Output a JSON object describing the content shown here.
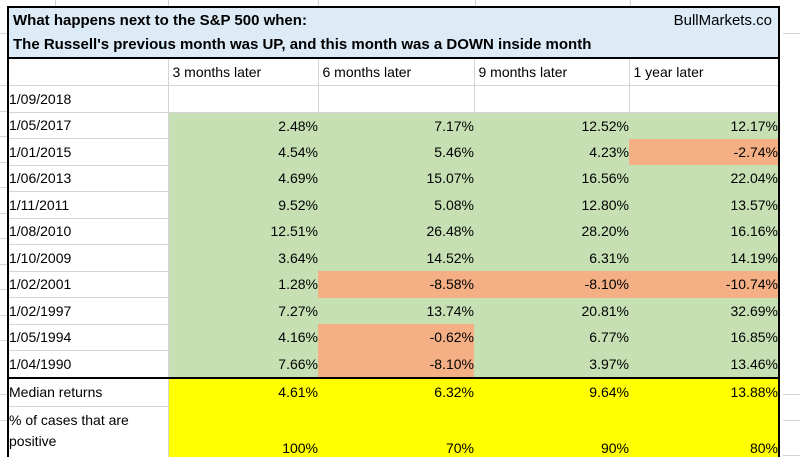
{
  "header": {
    "title_line1": "What happens next to the S&P 500 when:",
    "title_line2": "The Russell's previous month was UP, and this month was a DOWN inside month",
    "branding": "BullMarkets.co"
  },
  "columns": [
    "3 months later",
    "6 months later",
    "9 months later",
    "1 year later"
  ],
  "rows": [
    {
      "date": "1/09/2018",
      "values": [
        "",
        "",
        "",
        ""
      ]
    },
    {
      "date": "1/05/2017",
      "values": [
        "2.48%",
        "7.17%",
        "12.52%",
        "12.17%"
      ]
    },
    {
      "date": "1/01/2015",
      "values": [
        "4.54%",
        "5.46%",
        "4.23%",
        "-2.74%"
      ]
    },
    {
      "date": "1/06/2013",
      "values": [
        "4.69%",
        "15.07%",
        "16.56%",
        "22.04%"
      ]
    },
    {
      "date": "1/11/2011",
      "values": [
        "9.52%",
        "5.08%",
        "12.80%",
        "13.57%"
      ]
    },
    {
      "date": "1/08/2010",
      "values": [
        "12.51%",
        "26.48%",
        "28.20%",
        "16.16%"
      ]
    },
    {
      "date": "1/10/2009",
      "values": [
        "3.64%",
        "14.52%",
        "6.31%",
        "14.19%"
      ]
    },
    {
      "date": "1/02/2001",
      "values": [
        "1.28%",
        "-8.58%",
        "-8.10%",
        "-10.74%"
      ]
    },
    {
      "date": "1/02/1997",
      "values": [
        "7.27%",
        "13.74%",
        "20.81%",
        "32.69%"
      ]
    },
    {
      "date": "1/05/1994",
      "values": [
        "4.16%",
        "-0.62%",
        "6.77%",
        "16.85%"
      ]
    },
    {
      "date": "1/04/1990",
      "values": [
        "7.66%",
        "-8.10%",
        "3.97%",
        "13.46%"
      ]
    }
  ],
  "summary": {
    "median_label": "Median returns",
    "median_values": [
      "4.61%",
      "6.32%",
      "9.64%",
      "13.88%"
    ],
    "positive_label": "% of cases that are positive",
    "positive_label_lines": [
      "% of cases that are",
      "positive"
    ],
    "positive_values": [
      "100%",
      "70%",
      "90%",
      "80%"
    ]
  },
  "colors": {
    "title_bg": "#DDEBF7",
    "positive_bg": "#C6E0B4",
    "negative_bg": "#F4B084",
    "summary_bg": "#FFFF00"
  },
  "chart_data": {
    "type": "table",
    "title": "What happens next to the S&P 500 when: The Russell's previous month was UP, and this month was a DOWN inside month",
    "source": "BullMarkets.co",
    "columns": [
      "date",
      "3 months later",
      "6 months later",
      "9 months later",
      "1 year later"
    ],
    "rows": [
      [
        "1/09/2018",
        null,
        null,
        null,
        null
      ],
      [
        "1/05/2017",
        2.48,
        7.17,
        12.52,
        12.17
      ],
      [
        "1/01/2015",
        4.54,
        5.46,
        4.23,
        -2.74
      ],
      [
        "1/06/2013",
        4.69,
        15.07,
        16.56,
        22.04
      ],
      [
        "1/11/2011",
        9.52,
        5.08,
        12.8,
        13.57
      ],
      [
        "1/08/2010",
        12.51,
        26.48,
        28.2,
        16.16
      ],
      [
        "1/10/2009",
        3.64,
        14.52,
        6.31,
        14.19
      ],
      [
        "1/02/2001",
        1.28,
        -8.58,
        -8.1,
        -10.74
      ],
      [
        "1/02/1997",
        7.27,
        13.74,
        20.81,
        32.69
      ],
      [
        "1/05/1994",
        4.16,
        -0.62,
        6.77,
        16.85
      ],
      [
        "1/04/1990",
        7.66,
        -8.1,
        3.97,
        13.46
      ]
    ],
    "median_returns_pct": [
      4.61,
      6.32,
      9.64,
      13.88
    ],
    "pct_of_cases_positive": [
      100,
      70,
      90,
      80
    ],
    "units": "percent",
    "highlight_rule": "positive values shaded green, negative values shaded salmon, summary rows shaded yellow"
  }
}
